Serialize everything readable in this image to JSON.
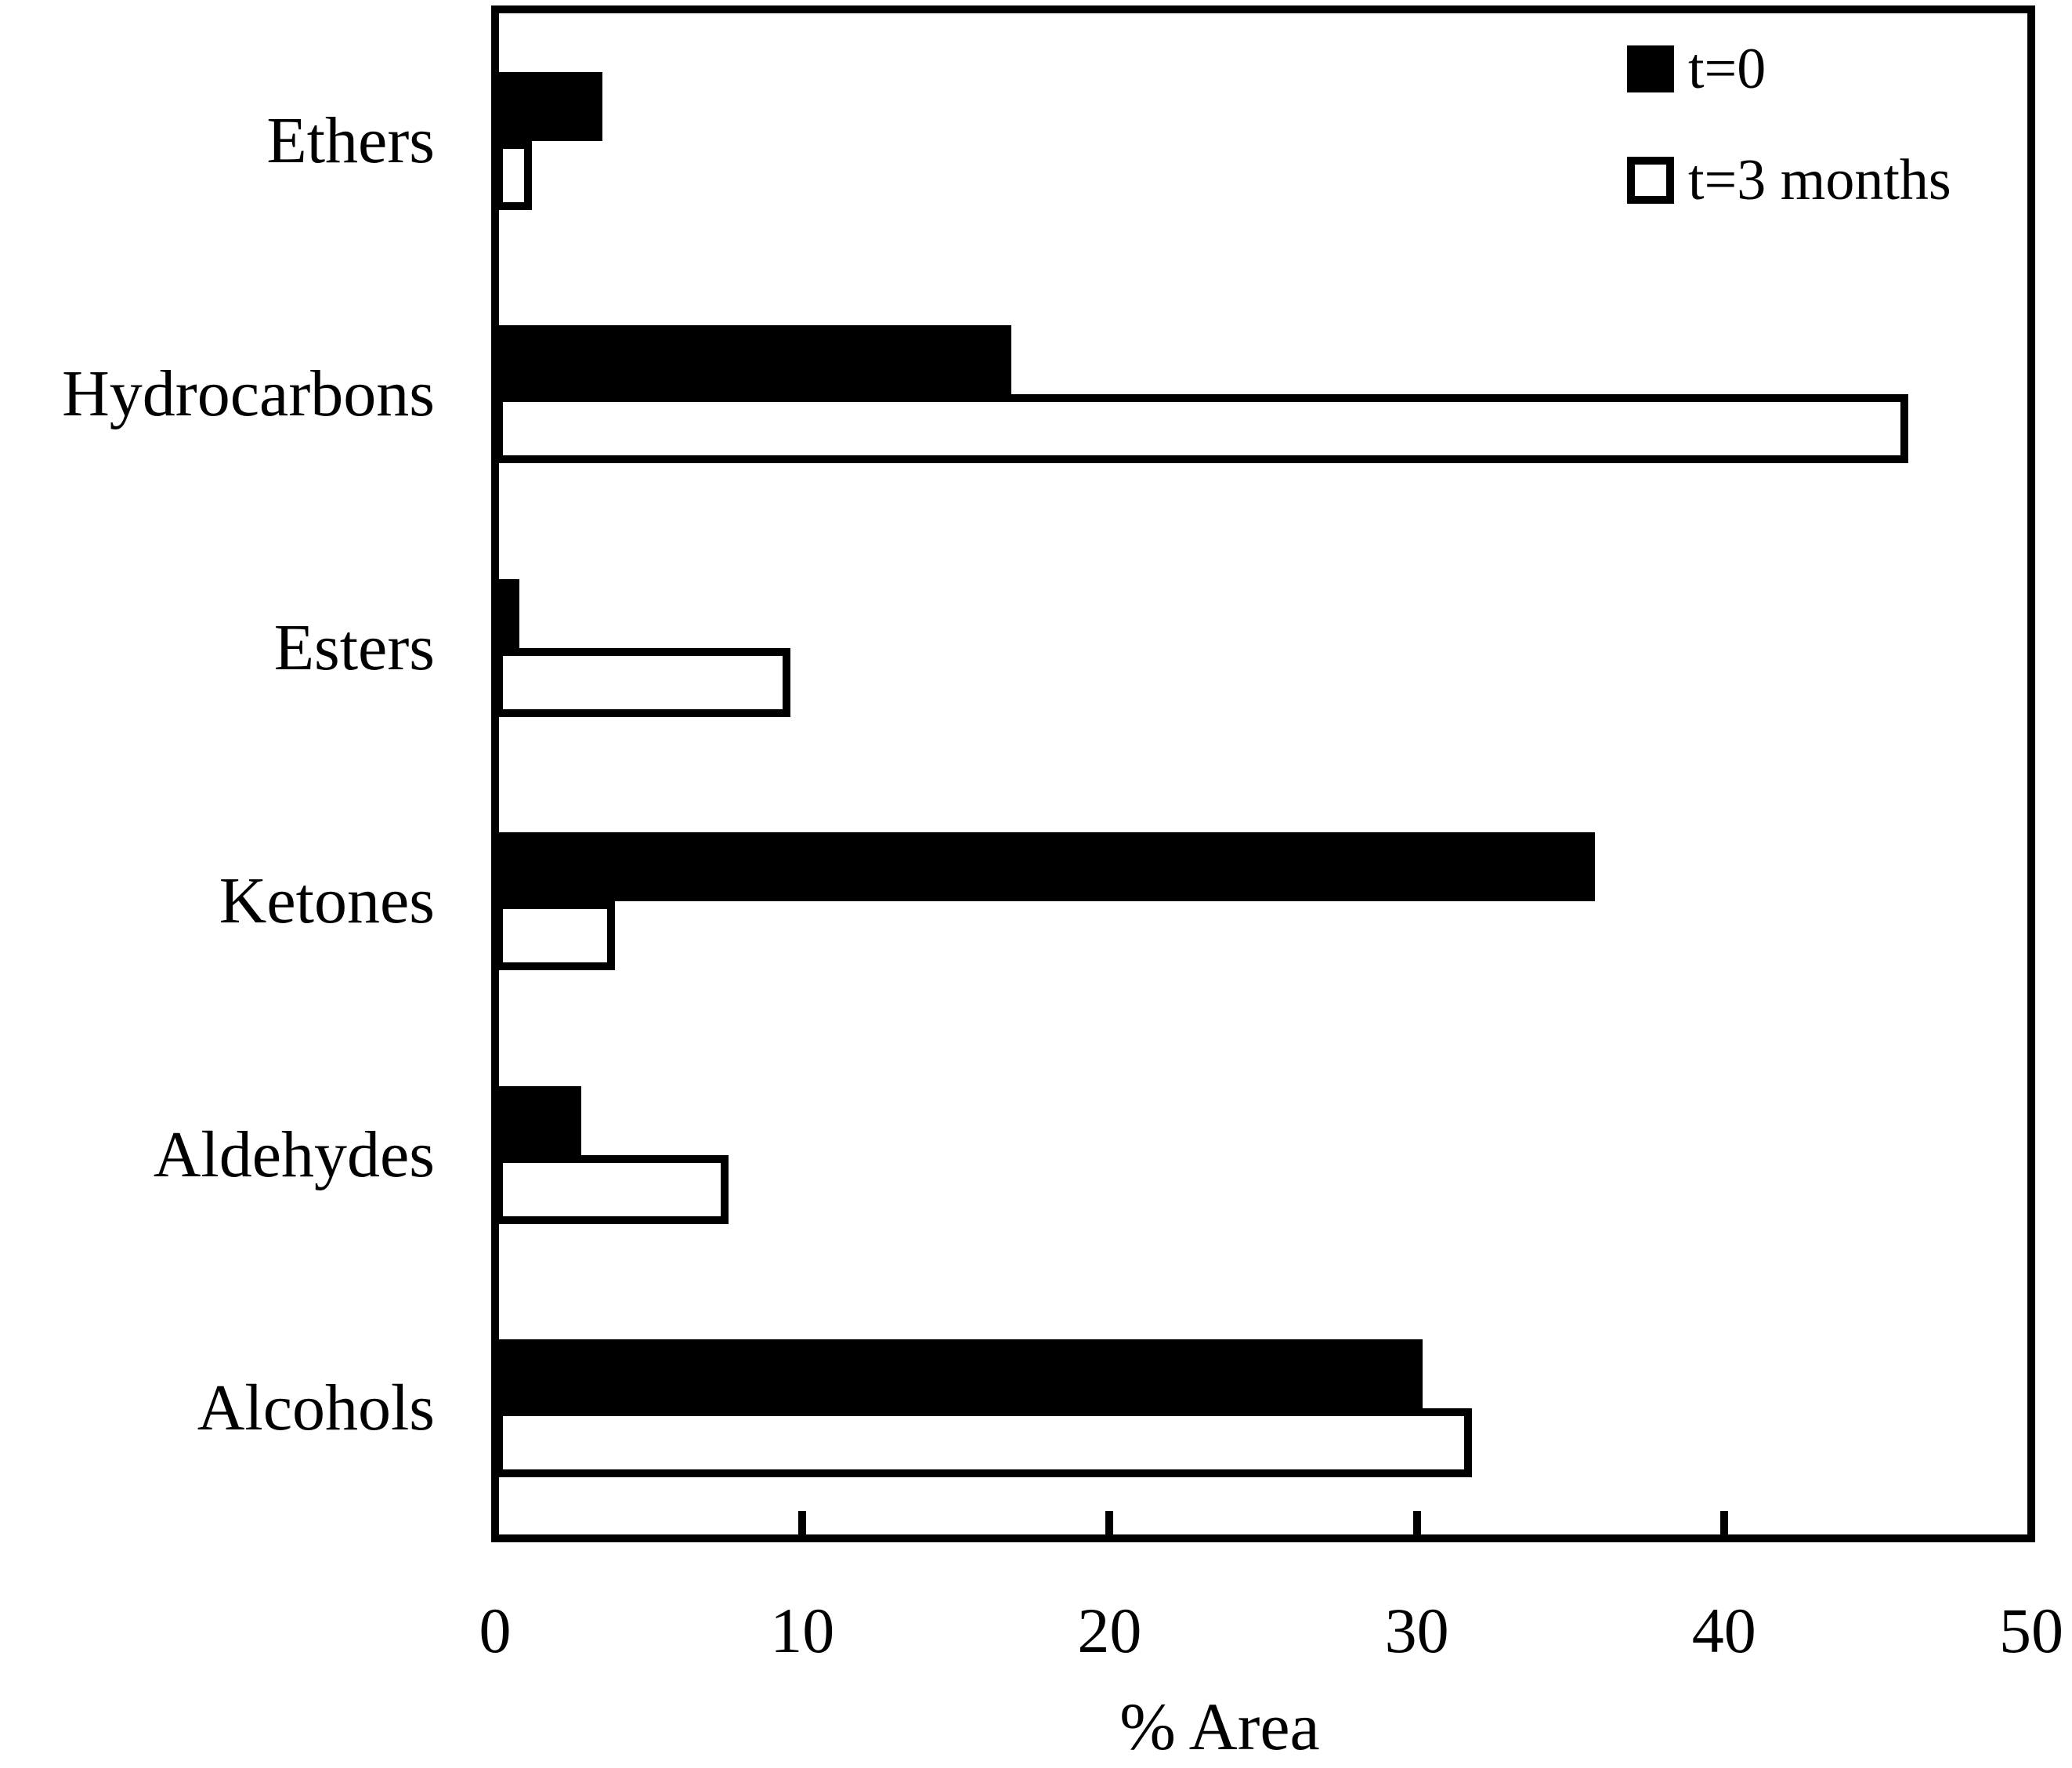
{
  "chart_data": {
    "type": "bar",
    "orientation": "horizontal",
    "title": "",
    "xlabel": "% Area",
    "xlim": [
      0,
      50
    ],
    "xticks": [
      0,
      10,
      20,
      30,
      40,
      50
    ],
    "grid": false,
    "frame": true,
    "legend_position": "top-right",
    "categories": [
      "Ethers",
      "Hydrocarbons",
      "Esters",
      "Ketones",
      "Aldehydes",
      "Alcohols"
    ],
    "series": [
      {
        "name": "t=0",
        "style": "filled",
        "fill_color": "#000000",
        "values": [
          3.5,
          16.8,
          0.8,
          35.8,
          2.8,
          30.2
        ]
      },
      {
        "name": "t=3 months",
        "style": "hollow",
        "fill_color": "#ffffff",
        "values": [
          1.2,
          46.0,
          9.6,
          3.9,
          7.6,
          31.8
        ]
      }
    ],
    "colors": {
      "axis": "#000000",
      "background": "#ffffff"
    }
  }
}
